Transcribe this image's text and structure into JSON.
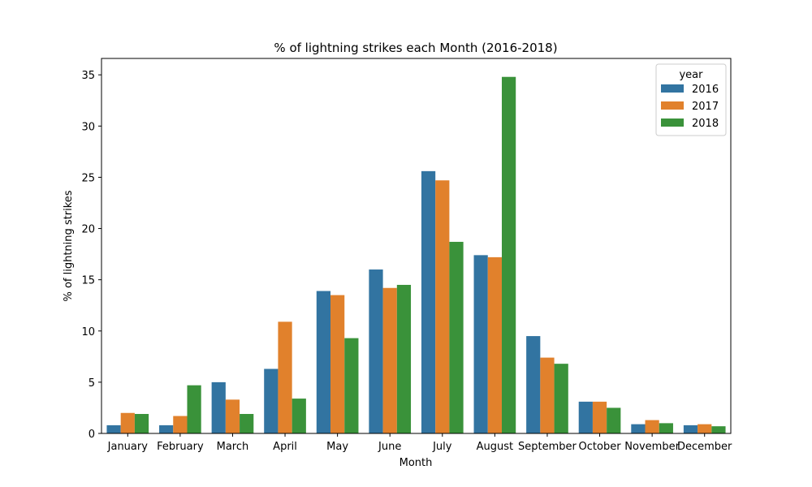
{
  "chart_data": {
    "type": "bar",
    "title": "% of lightning strikes each Month (2016-2018)",
    "xlabel": "Month",
    "ylabel": "% of lightning strikes",
    "ylim": [
      0,
      36.6
    ],
    "yticks": [
      0,
      5,
      10,
      15,
      20,
      25,
      30,
      35
    ],
    "grid": false,
    "legend": {
      "title": "year",
      "placement": "top-right"
    },
    "categories": [
      "January",
      "February",
      "March",
      "April",
      "May",
      "June",
      "July",
      "August",
      "September",
      "October",
      "November",
      "December"
    ],
    "series": [
      {
        "name": "2016",
        "color": "#3274a1",
        "values": [
          0.8,
          0.8,
          5.0,
          6.3,
          13.9,
          16.0,
          25.6,
          17.4,
          9.5,
          3.1,
          0.9,
          0.8
        ]
      },
      {
        "name": "2017",
        "color": "#e1812c",
        "values": [
          2.0,
          1.7,
          3.3,
          10.9,
          13.5,
          14.2,
          24.7,
          17.2,
          7.4,
          3.1,
          1.3,
          0.9
        ]
      },
      {
        "name": "2018",
        "color": "#3a923a",
        "values": [
          1.9,
          4.7,
          1.9,
          3.4,
          9.3,
          14.5,
          18.7,
          34.8,
          6.8,
          2.5,
          1.0,
          0.7
        ]
      }
    ]
  }
}
